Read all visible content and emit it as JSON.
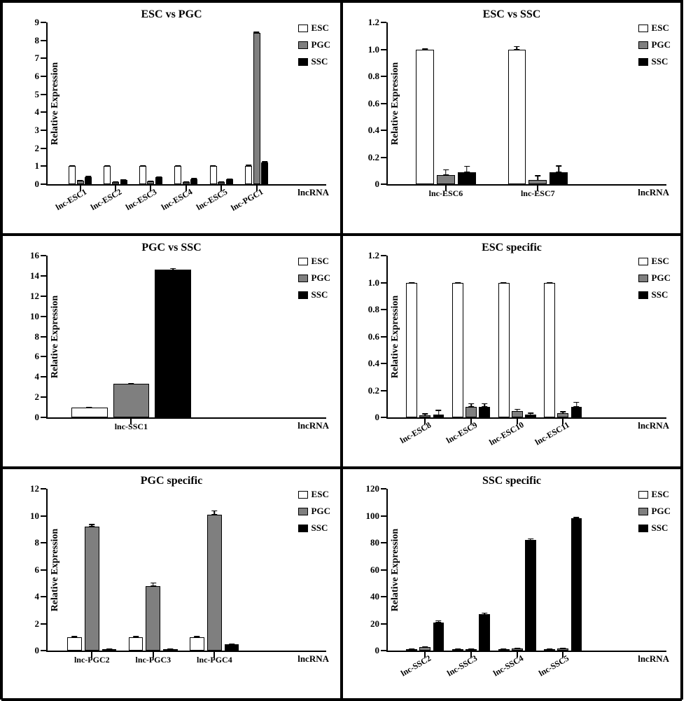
{
  "global": {
    "ylabel": "Relative Expression",
    "xlabel": "lncRNA",
    "legend": [
      {
        "label": "ESC",
        "color": "#ffffff"
      },
      {
        "label": "PGC",
        "color": "#7f7f7f"
      },
      {
        "label": "SSC",
        "color": "#000000"
      }
    ],
    "series_colors": [
      "#ffffff",
      "#7f7f7f",
      "#000000"
    ],
    "background_color": "#ffffff",
    "axis_color": "#000000",
    "title_fontsize": 16,
    "label_fontsize": 14,
    "tick_fontsize": 13
  },
  "panels": [
    {
      "id": "esc_vs_pgc",
      "title": "ESC vs PGC",
      "type": "bar",
      "ylim": [
        0,
        9
      ],
      "ytick_step": 1,
      "categories": [
        "lnc-ESC1",
        "lnc-ESC2",
        "lnc-ESC3",
        "lnc-ESC4",
        "lnc-ESC5",
        "lnc-PGC1"
      ],
      "xlabel_rotate": true,
      "values": {
        "ESC": [
          1.0,
          1.0,
          1.0,
          1.0,
          1.0,
          1.0
        ],
        "PGC": [
          0.2,
          0.1,
          0.15,
          0.12,
          0.1,
          8.42
        ],
        "SSC": [
          0.4,
          0.25,
          0.38,
          0.28,
          0.28,
          1.2
        ]
      },
      "errors": {
        "ESC": [
          0.1,
          0.1,
          0.1,
          0.1,
          0.1,
          0.12
        ],
        "PGC": [
          0.08,
          0.05,
          0.05,
          0.05,
          0.05,
          0.1
        ],
        "SSC": [
          0.1,
          0.08,
          0.1,
          0.1,
          0.08,
          0.12
        ]
      }
    },
    {
      "id": "esc_vs_ssc",
      "title": "ESC vs SSC",
      "type": "bar",
      "ylim": [
        0,
        1.2
      ],
      "ytick_step": 0.2,
      "categories": [
        "lnc-ESC6",
        "lnc-ESC7"
      ],
      "xlabel_rotate": false,
      "values": {
        "ESC": [
          1.0,
          1.0
        ],
        "PGC": [
          0.07,
          0.03
        ],
        "SSC": [
          0.09,
          0.09
        ]
      },
      "errors": {
        "ESC": [
          0.015,
          0.03
        ],
        "PGC": [
          0.045,
          0.04
        ],
        "SSC": [
          0.05,
          0.055
        ]
      }
    },
    {
      "id": "pgc_vs_ssc",
      "title": "PGC vs SSC",
      "type": "bar",
      "ylim": [
        0,
        16
      ],
      "ytick_step": 2,
      "categories": [
        "lnc-SSC1"
      ],
      "xlabel_rotate": false,
      "values": {
        "ESC": [
          1.0
        ],
        "PGC": [
          3.3
        ],
        "SSC": [
          14.6
        ]
      },
      "errors": {
        "ESC": [
          0.12
        ],
        "PGC": [
          0.15
        ],
        "SSC": [
          0.25
        ]
      }
    },
    {
      "id": "esc_specific",
      "title": "ESC specific",
      "type": "bar",
      "ylim": [
        0,
        1.2
      ],
      "ytick_step": 0.2,
      "categories": [
        "lnc-ESC8",
        "lnc-ESC9",
        "lnc-ESC10",
        "lnc-ESC11"
      ],
      "xlabel_rotate": true,
      "values": {
        "ESC": [
          1.0,
          1.0,
          1.0,
          1.0
        ],
        "PGC": [
          0.015,
          0.08,
          0.045,
          0.03
        ],
        "SSC": [
          0.02,
          0.08,
          0.02,
          0.08
        ]
      },
      "errors": {
        "ESC": [
          0.01,
          0.01,
          0.01,
          0.01
        ],
        "PGC": [
          0.02,
          0.03,
          0.025,
          0.02
        ],
        "SSC": [
          0.04,
          0.03,
          0.02,
          0.04
        ]
      }
    },
    {
      "id": "pgc_specific",
      "title": "PGC specific",
      "type": "bar",
      "ylim": [
        0,
        12
      ],
      "ytick_step": 2,
      "categories": [
        "lnc-PGC2",
        "lnc-PGC3",
        "lnc-PGC4"
      ],
      "xlabel_rotate": false,
      "values": {
        "ESC": [
          1.0,
          1.0,
          1.0
        ],
        "PGC": [
          9.2,
          4.8,
          10.1
        ],
        "SSC": [
          0.12,
          0.12,
          0.45
        ]
      },
      "errors": {
        "ESC": [
          0.15,
          0.15,
          0.12
        ],
        "PGC": [
          0.25,
          0.3,
          0.35
        ],
        "SSC": [
          0.05,
          0.05,
          0.08
        ]
      }
    },
    {
      "id": "ssc_specific",
      "title": "SSC specific",
      "type": "bar",
      "ylim": [
        0,
        120
      ],
      "ytick_step": 20,
      "categories": [
        "lnc-SSC2",
        "lnc-SSC3",
        "lnc-SSC4",
        "lnc-SSC5"
      ],
      "xlabel_rotate": true,
      "values": {
        "ESC": [
          1.0,
          1.0,
          1.0,
          1.0
        ],
        "PGC": [
          2.5,
          1.3,
          1.6,
          1.8
        ],
        "SSC": [
          21,
          27,
          82,
          98
        ]
      },
      "errors": {
        "ESC": [
          0.5,
          0.5,
          0.5,
          0.5
        ],
        "PGC": [
          0.8,
          0.6,
          0.6,
          0.6
        ],
        "SSC": [
          2.0,
          1.8,
          1.8,
          1.6
        ]
      }
    }
  ]
}
